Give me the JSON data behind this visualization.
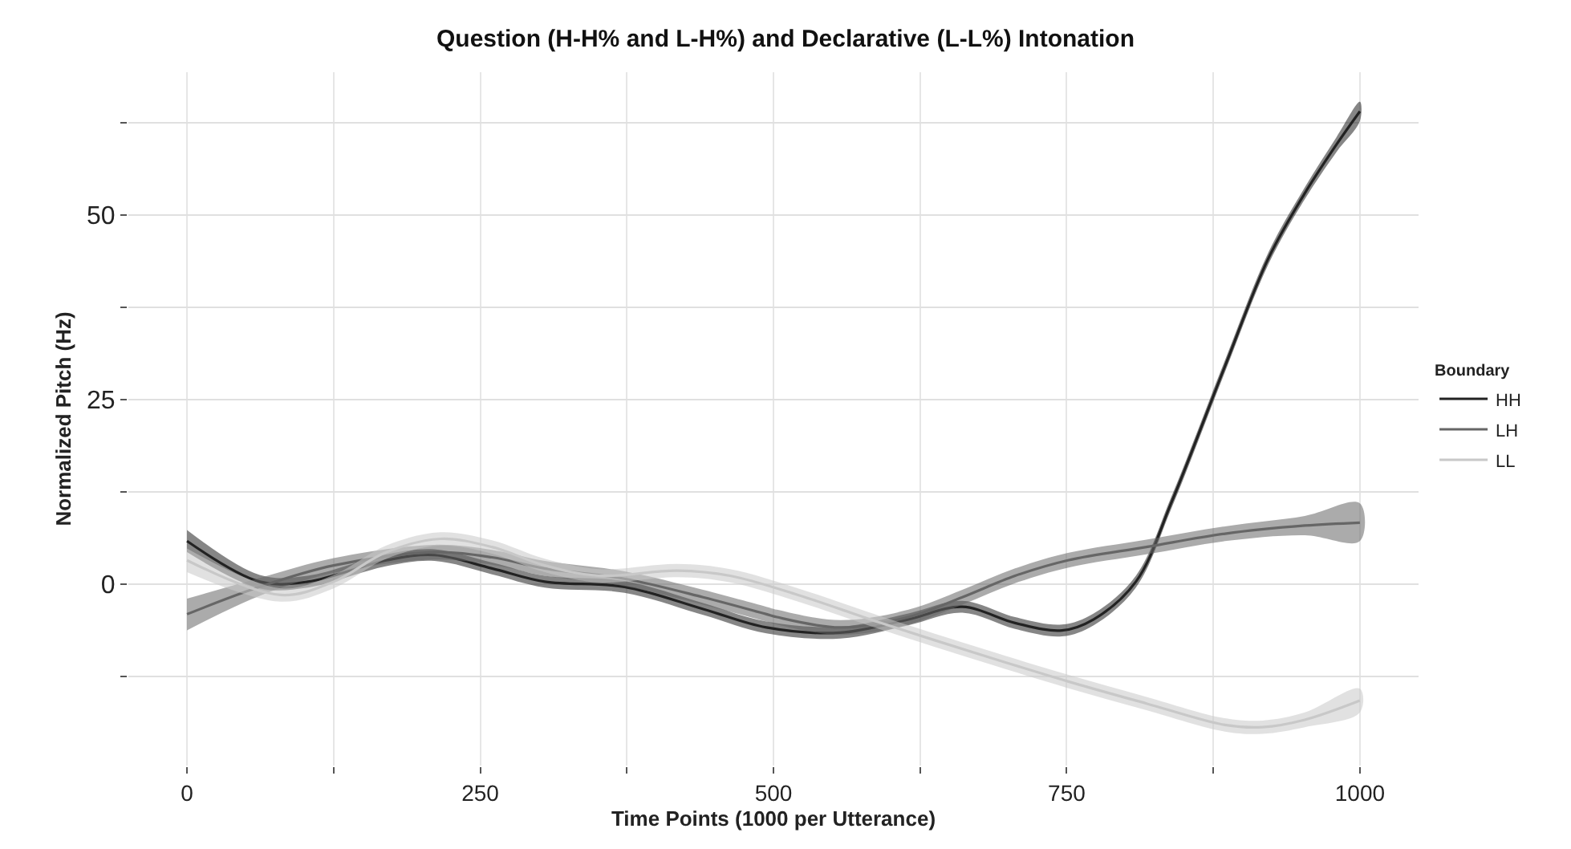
{
  "chart_data": {
    "type": "line",
    "title": "Question (H-H% and L-H%) and Declarative (L-L%) Intonation",
    "xlabel": "Time Points (1000 per Utterance)",
    "ylabel": "Normalized Pitch (Hz)",
    "legend_title": "Boundary",
    "xlim": [
      -50,
      1050
    ],
    "ylim": [
      -24.6,
      69.3
    ],
    "xticks": [
      0,
      {
        "value": 125,
        "label": null
      },
      250,
      {
        "value": 375,
        "label": null
      },
      500,
      {
        "value": 625,
        "label": null
      },
      750,
      {
        "value": 875,
        "label": null
      },
      1000
    ],
    "yticks": [
      {
        "value": -12.5,
        "label": null
      },
      0,
      {
        "value": 12.5,
        "label": null
      },
      25,
      {
        "value": 37.5,
        "label": null
      },
      50,
      {
        "value": 62.5,
        "label": null
      }
    ],
    "grid": true,
    "legend": "right",
    "marker": "none",
    "line_style": "solid",
    "series": [
      {
        "name": "HH",
        "color": "#222222",
        "x": [
          0,
          62,
          103,
          170,
          211,
          260,
          305,
          373,
          440,
          494,
          557,
          615,
          661,
          706,
          746,
          773,
          809,
          840,
          885,
          922,
          953,
          980,
          1000
        ],
        "values": [
          5.8,
          0.3,
          0.3,
          3.2,
          3.9,
          2.1,
          0.3,
          -0.4,
          -3.4,
          -5.9,
          -6.6,
          -4.8,
          -3.1,
          -5.3,
          -6.3,
          -4.8,
          0.3,
          11.3,
          29.5,
          44.1,
          52.9,
          59.5,
          64
        ],
        "lower": [
          4.3,
          -0.6,
          -0.5,
          2.4,
          3.1,
          1.3,
          -0.5,
          -1.2,
          -4.2,
          -6.7,
          -7.4,
          -5.6,
          -3.9,
          -6.1,
          -7.1,
          -5.6,
          -0.5,
          10.5,
          28.7,
          43.3,
          52.1,
          58.5,
          62.7
        ],
        "upper": [
          7.3,
          1.2,
          1.1,
          4.0,
          4.7,
          2.9,
          1.1,
          0.4,
          -2.6,
          -5.1,
          -5.8,
          -4.0,
          -2.3,
          -4.5,
          -5.5,
          -4.0,
          1.1,
          12.1,
          30.3,
          44.9,
          53.7,
          60.5,
          65.3
        ]
      },
      {
        "name": "LH",
        "color": "#666666",
        "x": [
          0,
          62,
          125,
          211,
          260,
          305,
          373,
          440,
          494,
          503,
          557,
          615,
          661,
          706,
          751,
          818,
          885,
          953,
          1000
        ],
        "values": [
          -4.1,
          -0.4,
          2.5,
          4.3,
          3.6,
          2.1,
          0.7,
          -1.8,
          -4.1,
          -4.5,
          -5.9,
          -4.5,
          -1.8,
          1.1,
          3.2,
          5.0,
          6.8,
          7.9,
          8.3
        ],
        "lower": [
          -6.3,
          -1.6,
          1.5,
          3.3,
          2.6,
          1.1,
          -0.3,
          -2.8,
          -5.1,
          -5.5,
          -6.9,
          -5.5,
          -2.8,
          0.1,
          2.2,
          4.0,
          5.8,
          6.6,
          5.8
        ],
        "upper": [
          -2.0,
          0.8,
          3.5,
          5.3,
          4.6,
          3.1,
          1.7,
          -0.8,
          -3.1,
          -3.5,
          -4.9,
          -3.5,
          -0.8,
          2.1,
          4.2,
          6.0,
          7.8,
          9.2,
          10.9
        ]
      },
      {
        "name": "LL",
        "color": "#c8c8c8",
        "x": [
          0,
          80,
          125,
          170,
          216,
          260,
          305,
          351,
          418,
          463,
          521,
          590,
          683,
          751,
          818,
          885,
          917,
          953,
          1000
        ],
        "values": [
          3.2,
          -1.5,
          0.3,
          4.3,
          6.1,
          5.0,
          2.5,
          1.1,
          1.8,
          1.1,
          -1.5,
          -5.2,
          -9.9,
          -13.2,
          -16.2,
          -19.1,
          -19.4,
          -18.4,
          -15.8
        ],
        "lower": [
          1.6,
          -2.4,
          -0.6,
          3.4,
          5.2,
          4.1,
          1.6,
          0.2,
          0.9,
          0.2,
          -2.4,
          -6.1,
          -10.8,
          -14.1,
          -17.1,
          -20.0,
          -20.3,
          -19.4,
          -17.4
        ],
        "upper": [
          4.8,
          -0.6,
          1.2,
          5.2,
          7.0,
          5.9,
          3.4,
          2.0,
          2.7,
          2.0,
          -0.6,
          -4.3,
          -9.0,
          -12.3,
          -15.3,
          -18.2,
          -18.5,
          -17.4,
          -14.2
        ]
      }
    ]
  }
}
